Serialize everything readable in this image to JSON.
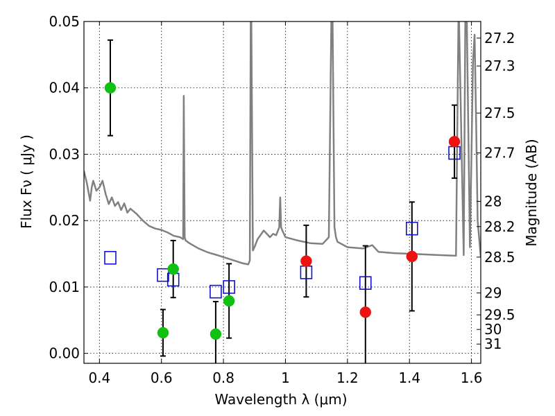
{
  "chart_data": {
    "type": "scatter",
    "xlabel": "Wavelength  λ (μm)",
    "ylabel": "Flux  Fν  ( μJy )",
    "y2label": "Magnitude (AB)",
    "xlim": [
      0.35,
      1.63
    ],
    "ylim": [
      -0.0015,
      0.05
    ],
    "grid": true,
    "x_ticks": [
      0.4,
      0.6,
      0.8,
      1.0,
      1.2,
      1.4,
      1.6
    ],
    "x_tick_labels": [
      "0.4",
      "0.6",
      "0.8",
      "1",
      "1.2",
      "1.4",
      "1.6"
    ],
    "y_ticks": [
      0.0,
      0.01,
      0.02,
      0.03,
      0.04,
      0.05
    ],
    "y_tick_labels": [
      "0.00",
      "0.01",
      "0.02",
      "0.03",
      "0.04",
      "0.05"
    ],
    "y2_ticks": [
      {
        "label": "27.2",
        "flux": 0.0475
      },
      {
        "label": "27.3",
        "flux": 0.0433
      },
      {
        "label": "27.5",
        "flux": 0.0362
      },
      {
        "label": "27.7",
        "flux": 0.0302
      },
      {
        "label": "28",
        "flux": 0.0229
      },
      {
        "label": "28.2",
        "flux": 0.0191
      },
      {
        "label": "28.5",
        "flux": 0.0145
      },
      {
        "label": "29",
        "flux": 0.0091
      },
      {
        "label": "29.5",
        "flux": 0.0058
      },
      {
        "label": "30",
        "flux": 0.0036
      },
      {
        "label": "31",
        "flux": 0.0014
      }
    ],
    "colors": {
      "green": "#11c111",
      "red": "#ee1111",
      "blue": "#1111cc",
      "model": "#808080",
      "errorbar": "#000000"
    },
    "series": [
      {
        "marker": "green-circle",
        "x": [
          0.435,
          0.605,
          0.638,
          0.775,
          0.818
        ],
        "y": [
          0.04,
          0.0031,
          0.0127,
          0.0029,
          0.0079
        ],
        "err": [
          0.0072,
          0.0035,
          0.0043,
          0.0049,
          0.0056
        ]
      },
      {
        "marker": "red-circle",
        "x": [
          1.067,
          1.258,
          1.408,
          1.545
        ],
        "y": [
          0.0139,
          0.0062,
          0.0146,
          0.0319
        ],
        "err": [
          0.0054,
          0.01,
          0.0082,
          0.0055
        ]
      },
      {
        "marker": "blue-open-square",
        "x": [
          0.435,
          0.605,
          0.638,
          0.775,
          0.818,
          1.067,
          1.258,
          1.408,
          1.545
        ],
        "y": [
          0.0144,
          0.0118,
          0.0111,
          0.0093,
          0.01,
          0.0122,
          0.0106,
          0.0188,
          0.0302
        ]
      },
      {
        "marker": "model-line",
        "x": [
          0.35,
          0.36,
          0.37,
          0.375,
          0.38,
          0.39,
          0.4,
          0.41,
          0.42,
          0.43,
          0.44,
          0.45,
          0.46,
          0.47,
          0.48,
          0.49,
          0.5,
          0.52,
          0.54,
          0.56,
          0.58,
          0.6,
          0.62,
          0.64,
          0.66,
          0.67,
          0.672,
          0.675,
          0.678,
          0.69,
          0.72,
          0.75,
          0.78,
          0.8,
          0.82,
          0.84,
          0.86,
          0.88,
          0.885,
          0.888,
          0.89,
          0.895,
          0.9,
          0.91,
          0.93,
          0.95,
          0.96,
          0.97,
          0.98,
          0.983,
          0.986,
          0.99,
          1.0,
          1.04,
          1.08,
          1.12,
          1.14,
          1.148,
          1.152,
          1.158,
          1.163,
          1.168,
          1.2,
          1.25,
          1.28,
          1.3,
          1.35,
          1.4,
          1.45,
          1.5,
          1.55,
          1.558,
          1.56,
          1.575,
          1.58,
          1.585,
          1.595,
          1.605,
          1.61,
          1.615,
          1.62,
          1.63
        ],
        "y": [
          0.0275,
          0.0255,
          0.023,
          0.025,
          0.026,
          0.0245,
          0.025,
          0.026,
          0.024,
          0.0225,
          0.0235,
          0.0222,
          0.0228,
          0.0216,
          0.0226,
          0.0212,
          0.0218,
          0.021,
          0.02,
          0.0192,
          0.0188,
          0.0186,
          0.0182,
          0.0177,
          0.0175,
          0.0172,
          0.0388,
          0.0175,
          0.017,
          0.0166,
          0.0158,
          0.0152,
          0.0148,
          0.0145,
          0.0142,
          0.0139,
          0.0136,
          0.0134,
          0.014,
          0.05,
          0.05,
          0.0155,
          0.016,
          0.0172,
          0.0185,
          0.0175,
          0.018,
          0.0178,
          0.019,
          0.0235,
          0.019,
          0.0185,
          0.0175,
          0.017,
          0.0166,
          0.0165,
          0.0175,
          0.05,
          0.05,
          0.019,
          0.0175,
          0.0168,
          0.016,
          0.0158,
          0.0163,
          0.0153,
          0.0151,
          0.015,
          0.0149,
          0.0148,
          0.0147,
          0.05,
          0.05,
          0.0148,
          0.05,
          0.05,
          0.016,
          0.044,
          0.048,
          0.035,
          0.02,
          0.0145
        ]
      }
    ]
  }
}
